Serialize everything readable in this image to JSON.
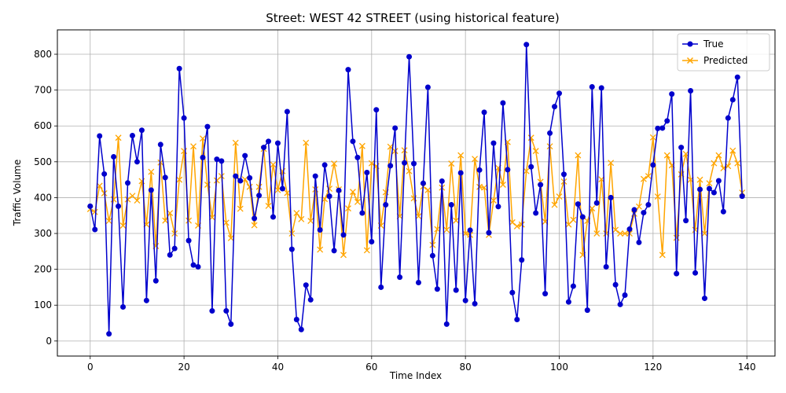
{
  "chart_data": {
    "type": "line",
    "title": "Street: WEST 42 STREET (using historical feature)",
    "xlabel": "Time Index",
    "ylabel": "Traffic Volume",
    "xlim": [
      -7,
      146
    ],
    "ylim": [
      -42,
      868
    ],
    "xticks": [
      0,
      20,
      40,
      60,
      80,
      100,
      120,
      140
    ],
    "yticks": [
      0,
      100,
      200,
      300,
      400,
      500,
      600,
      700,
      800
    ],
    "grid": true,
    "legend_position": "top-right",
    "x": [
      0,
      1,
      2,
      3,
      4,
      5,
      6,
      7,
      8,
      9,
      10,
      11,
      12,
      13,
      14,
      15,
      16,
      17,
      18,
      19,
      20,
      21,
      22,
      23,
      24,
      25,
      26,
      27,
      28,
      29,
      30,
      31,
      32,
      33,
      34,
      35,
      36,
      37,
      38,
      39,
      40,
      41,
      42,
      43,
      44,
      45,
      46,
      47,
      48,
      49,
      50,
      51,
      52,
      53,
      54,
      55,
      56,
      57,
      58,
      59,
      60,
      61,
      62,
      63,
      64,
      65,
      66,
      67,
      68,
      69,
      70,
      71,
      72,
      73,
      74,
      75,
      76,
      77,
      78,
      79,
      80,
      81,
      82,
      83,
      84,
      85,
      86,
      87,
      88,
      89,
      90,
      91,
      92,
      93,
      94,
      95,
      96,
      97,
      98,
      99,
      100,
      101,
      102,
      103,
      104,
      105,
      106,
      107,
      108,
      109,
      110,
      111,
      112,
      113,
      114,
      115,
      116,
      117,
      118,
      119,
      120,
      121,
      122,
      123,
      124,
      125,
      126,
      127,
      128,
      129,
      130,
      131,
      132,
      133,
      134,
      135,
      136,
      137,
      138,
      139
    ],
    "series": [
      {
        "name": "True",
        "color": "#0000cc",
        "marker": "circle",
        "values": [
          376,
          311,
          572,
          466,
          20,
          514,
          376,
          95,
          441,
          573,
          500,
          588,
          113,
          421,
          168,
          548,
          456,
          240,
          258,
          760,
          622,
          280,
          212,
          207,
          512,
          598,
          84,
          507,
          502,
          84,
          47,
          460,
          447,
          517,
          455,
          342,
          406,
          540,
          557,
          346,
          552,
          425,
          640,
          256,
          60,
          32,
          156,
          115,
          460,
          310,
          491,
          404,
          252,
          420,
          296,
          757,
          557,
          512,
          357,
          470,
          277,
          645,
          150,
          380,
          489,
          594,
          178,
          497,
          793,
          495,
          163,
          440,
          708,
          238,
          145,
          446,
          47,
          380,
          142,
          469,
          113,
          309,
          104,
          477,
          638,
          302,
          552,
          375,
          664,
          478,
          135,
          60,
          226,
          827,
          486,
          357,
          436,
          132,
          580,
          654,
          691,
          465,
          109,
          153,
          382,
          346,
          86,
          709,
          385,
          706,
          207,
          400,
          157,
          102,
          128,
          312,
          366,
          275,
          358,
          380,
          491,
          593,
          594,
          614,
          689,
          188,
          540,
          336,
          698,
          190,
          423,
          119,
          425,
          414,
          447,
          361,
          622,
          673,
          736,
          404
        ]
      },
      {
        "name": "Predicted",
        "color": "#ffa500",
        "marker": "x",
        "values": [
          368,
          360,
          433,
          412,
          335,
          395,
          567,
          322,
          395,
          405,
          392,
          446,
          325,
          472,
          265,
          498,
          336,
          357,
          300,
          450,
          530,
          336,
          543,
          322,
          565,
          436,
          345,
          448,
          460,
          330,
          287,
          553,
          369,
          451,
          430,
          323,
          430,
          536,
          377,
          492,
          421,
          474,
          413,
          300,
          357,
          340,
          553,
          335,
          423,
          255,
          396,
          425,
          495,
          423,
          240,
          370,
          416,
          388,
          544,
          253,
          496,
          488,
          322,
          415,
          542,
          530,
          348,
          532,
          474,
          398,
          348,
          431,
          421,
          268,
          312,
          428,
          310,
          495,
          336,
          518,
          300,
          296,
          508,
          430,
          428,
          296,
          392,
          483,
          436,
          555,
          331,
          320,
          325,
          474,
          567,
          530,
          444,
          333,
          543,
          380,
          403,
          445,
          325,
          338,
          518,
          240,
          335,
          370,
          300,
          451,
          300,
          497,
          310,
          300,
          300,
          300,
          355,
          375,
          452,
          460,
          568,
          403,
          240,
          518,
          490,
          288,
          465,
          522,
          450,
          310,
          450,
          300,
          440,
          496,
          518,
          482,
          488,
          531,
          496,
          414
        ]
      }
    ]
  }
}
